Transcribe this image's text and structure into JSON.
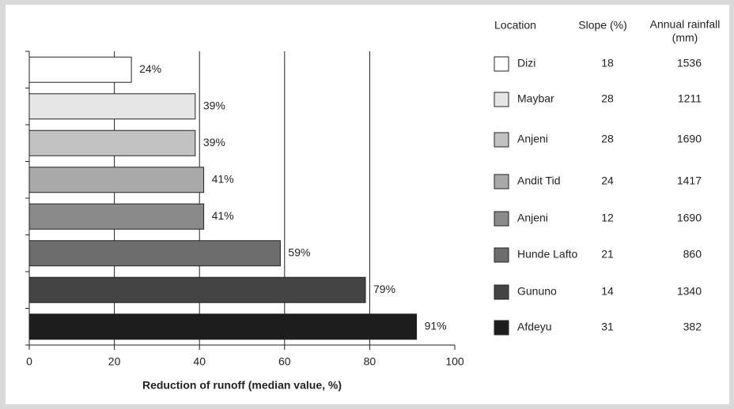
{
  "chart_data": {
    "type": "bar",
    "orientation": "horizontal",
    "categories": [
      "Dizi",
      "Maybar",
      "Anjeni",
      "Andit Tid",
      "Anjeni",
      "Hunde Lafto",
      "Gununo",
      "Afdeyu"
    ],
    "values": [
      24,
      39,
      39,
      41,
      41,
      59,
      79,
      91
    ],
    "value_labels": [
      "24%",
      "39%",
      "39%",
      "41%",
      "41%",
      "59%",
      "79%",
      "91%"
    ],
    "colors": [
      "#ffffff",
      "#e6e6e6",
      "#c2c2c2",
      "#a9a9a9",
      "#8a8a8a",
      "#6d6d6d",
      "#444444",
      "#1d1d1d"
    ],
    "xlabel": "Reduction of runoff (median value, %)",
    "xlim": [
      0,
      100
    ],
    "xticks": [
      0,
      20,
      40,
      60,
      80,
      100
    ],
    "grid": true,
    "legend_table": {
      "headers": {
        "location": "Location",
        "slope": "Slope (%)",
        "rainfall": [
          "Annual rainfall",
          "(mm)"
        ]
      },
      "slope": [
        18,
        28,
        28,
        24,
        12,
        21,
        14,
        31
      ],
      "rainfall": [
        1536,
        1211,
        1690,
        1417,
        1690,
        860,
        1340,
        382
      ]
    }
  }
}
